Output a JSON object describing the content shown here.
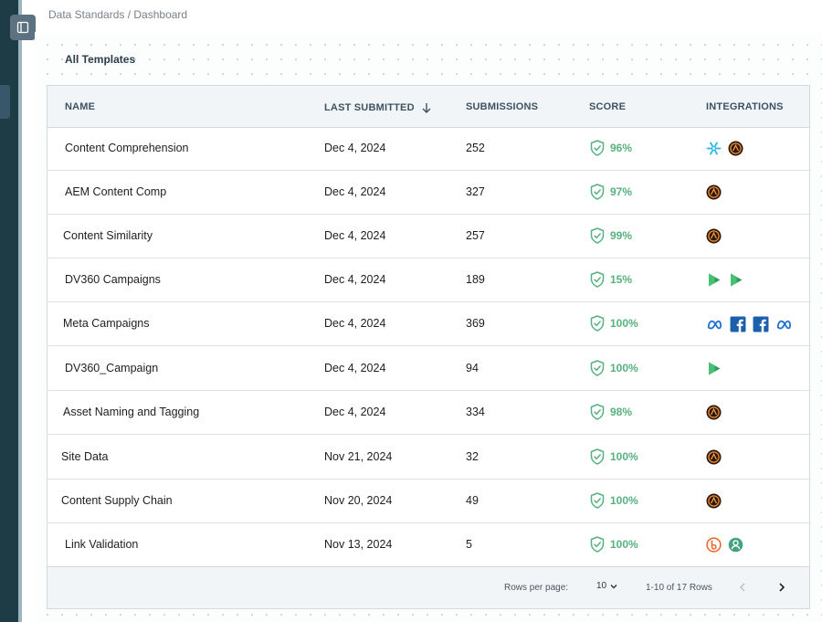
{
  "breadcrumb": "Data Standards / Dashboard",
  "section_title": "All Templates",
  "columns": {
    "name": "NAME",
    "last_submitted": "LAST SUBMITTED",
    "submissions": "SUBMISSIONS",
    "score": "SCORE",
    "integrations": "INTEGRATIONS"
  },
  "sort_icon": "arrow-down-icon",
  "rows": [
    {
      "name": "Content Comprehension",
      "date": "Dec 4, 2024",
      "submissions": "252",
      "score": "96%",
      "integrations": [
        "snowflake",
        "adobe"
      ]
    },
    {
      "name": "AEM Content Comp",
      "date": "Dec 4, 2024",
      "submissions": "327",
      "score": "97%",
      "integrations": [
        "adobe"
      ]
    },
    {
      "name": "Content Similarity",
      "date": "Dec 4, 2024",
      "submissions": "257",
      "score": "99%",
      "integrations": [
        "adobe"
      ]
    },
    {
      "name": "DV360 Campaigns",
      "date": "Dec 4, 2024",
      "submissions": "189",
      "score": "15%",
      "integrations": [
        "dv360",
        "dv360"
      ]
    },
    {
      "name": "Meta Campaigns",
      "date": "Dec 4, 2024",
      "submissions": "369",
      "score": "100%",
      "integrations": [
        "meta",
        "facebook",
        "facebook",
        "meta"
      ]
    },
    {
      "name": "DV360_Campaign",
      "date": "Dec 4, 2024",
      "submissions": "94",
      "score": "100%",
      "integrations": [
        "dv360"
      ]
    },
    {
      "name": "Asset Naming and Tagging",
      "date": "Dec 4, 2024",
      "submissions": "334",
      "score": "98%",
      "integrations": [
        "adobe"
      ]
    },
    {
      "name": "Site Data",
      "date": "Nov 21, 2024",
      "submissions": "32",
      "score": "100%",
      "integrations": [
        "adobe"
      ]
    },
    {
      "name": "Content Supply Chain",
      "date": "Nov 20, 2024",
      "submissions": "49",
      "score": "100%",
      "integrations": [
        "adobe"
      ]
    },
    {
      "name": "Link Validation",
      "date": "Nov 13, 2024",
      "submissions": "5",
      "score": "100%",
      "integrations": [
        "bitly",
        "webhook"
      ]
    }
  ],
  "footer": {
    "rows_per_page_label": "Rows per page:",
    "rows_per_page_value": "10",
    "range_text": "1-10 of 17 Rows"
  },
  "colors": {
    "sidebar": "#1d3c46",
    "score_green": "#56b17f",
    "meta_blue": "#1f6fd1",
    "facebook_blue": "#1b5fad",
    "dv360_green": "#2e9e5a",
    "snowflake": "#29b5e8",
    "bitly": "#ee6123"
  }
}
